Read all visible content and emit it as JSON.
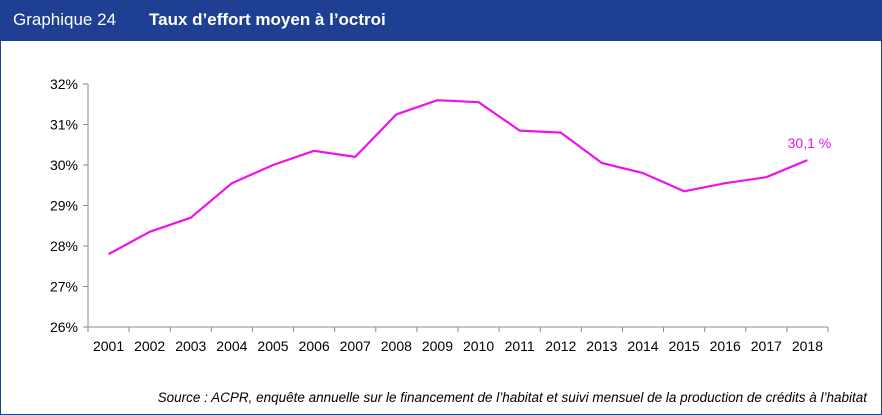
{
  "header": {
    "chart_number": "Graphique 24",
    "title": "Taux d’effort moyen à l’octroi"
  },
  "source": "Source : ACPR, enquête annuelle sur le financement de l’habitat et suivi mensuel de la production de crédits à l’habitat",
  "colors": {
    "header_bg": "#1f3f93",
    "line": "#ee11ee"
  },
  "chart_data": {
    "type": "line",
    "title": "Taux d’effort moyen à l’octroi",
    "xlabel": "",
    "ylabel": "",
    "ylim": [
      26,
      32
    ],
    "yticks": [
      26,
      27,
      28,
      29,
      30,
      31,
      32
    ],
    "ytick_labels": [
      "26%",
      "27%",
      "28%",
      "29%",
      "30%",
      "31%",
      "32%"
    ],
    "grid": false,
    "categories": [
      "2001",
      "2002",
      "2003",
      "2004",
      "2005",
      "2006",
      "2007",
      "2008",
      "2009",
      "2010",
      "2011",
      "2012",
      "2013",
      "2014",
      "2015",
      "2016",
      "2017",
      "2018"
    ],
    "series": [
      {
        "values": [
          27.8,
          28.35,
          28.7,
          29.55,
          30.0,
          30.35,
          30.2,
          31.25,
          31.6,
          31.55,
          30.85,
          30.8,
          30.05,
          29.8,
          29.35,
          29.55,
          29.7,
          30.12
        ]
      }
    ],
    "annotations": [
      {
        "category": "2018",
        "text": "30,1 %"
      }
    ]
  }
}
